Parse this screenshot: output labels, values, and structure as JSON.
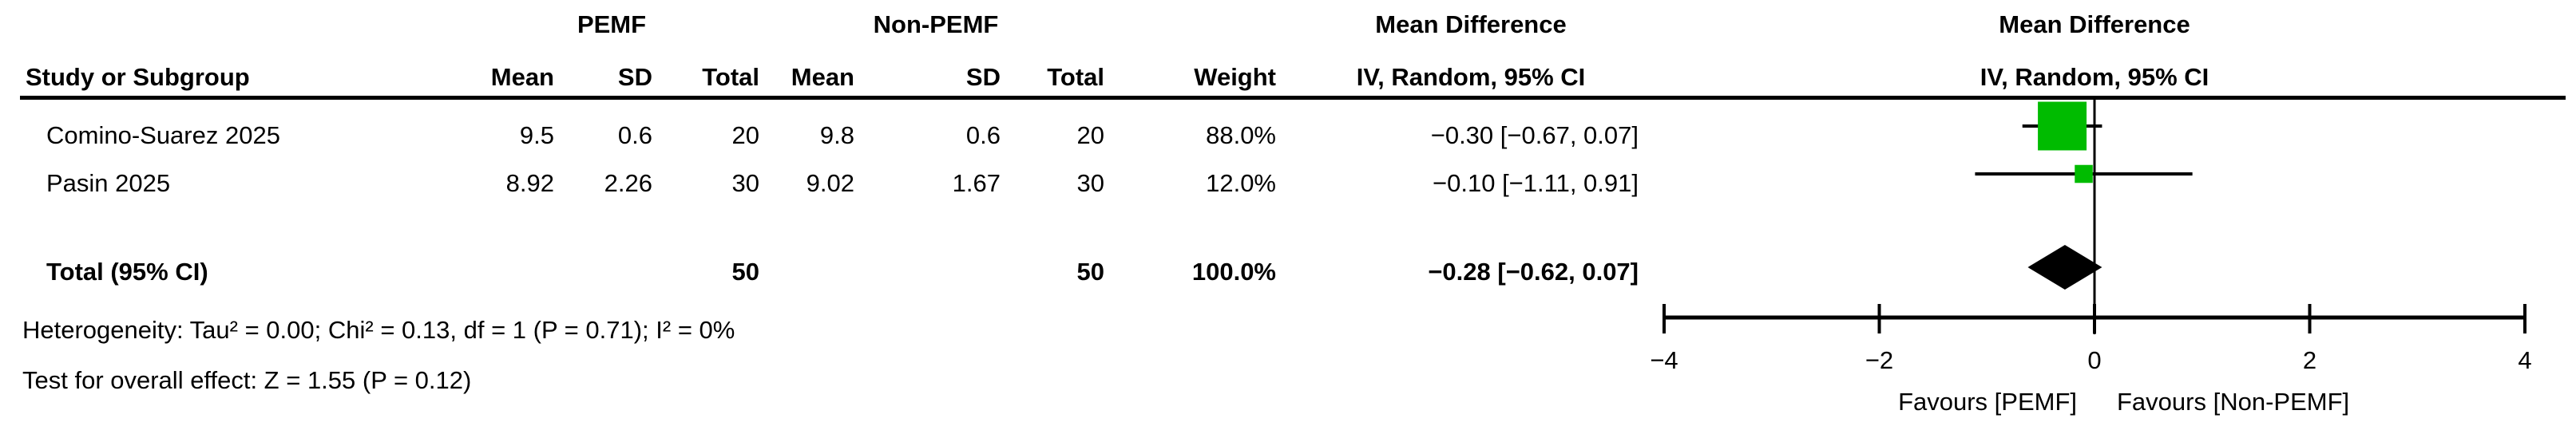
{
  "table": {
    "group1_label": "PEMF",
    "group2_label": "Non-PEMF",
    "effect_label": "Mean Difference",
    "headers": {
      "study": "Study or Subgroup",
      "mean": "Mean",
      "sd": "SD",
      "total": "Total",
      "weight": "Weight",
      "ci": "IV, Random, 95% CI"
    },
    "rows": [
      {
        "study": "Comino-Suarez 2025",
        "mean1": "9.5",
        "sd1": "0.6",
        "total1": "20",
        "mean2": "9.8",
        "sd2": "0.6",
        "total2": "20",
        "weight": "88.0%",
        "ci_text": "−0.30 [−0.67, 0.07]"
      },
      {
        "study": "Pasin 2025",
        "mean1": "8.92",
        "sd1": "2.26",
        "total1": "30",
        "mean2": "9.02",
        "sd2": "1.67",
        "total2": "30",
        "weight": "12.0%",
        "ci_text": "−0.10 [−1.11, 0.91]"
      }
    ],
    "total_row": {
      "label": "Total (95% CI)",
      "total1": "50",
      "total2": "50",
      "weight": "100.0%",
      "ci_text": "−0.28 [−0.62, 0.07]"
    },
    "heterogeneity": "Heterogeneity: Tau² = 0.00; Chi² = 0.13, df = 1 (P = 0.71); I² = 0%",
    "overall_effect": "Test for overall effect: Z = 1.55 (P = 0.12)"
  },
  "chart_data": {
    "type": "forest",
    "title": "Mean Difference",
    "subtitle": "IV, Random, 95% CI",
    "axis": {
      "min": -4,
      "max": 4,
      "ticks": [
        -4,
        -2,
        0,
        2,
        4
      ],
      "tick_labels": [
        "−4",
        "−2",
        "0",
        "2",
        "4"
      ],
      "zero_line": 0
    },
    "studies": [
      {
        "name": "Comino-Suarez 2025",
        "md": -0.3,
        "ci_low": -0.67,
        "ci_high": 0.07,
        "weight_pct": 88.0
      },
      {
        "name": "Pasin 2025",
        "md": -0.1,
        "ci_low": -1.11,
        "ci_high": 0.91,
        "weight_pct": 12.0
      }
    ],
    "total": {
      "md": -0.28,
      "ci_low": -0.62,
      "ci_high": 0.07
    },
    "favours_left": "Favours [PEMF]",
    "favours_right": "Favours [Non-PEMF]",
    "marker_color": "#00BB00",
    "diamond_color": "#000000",
    "line_color": "#000000"
  }
}
